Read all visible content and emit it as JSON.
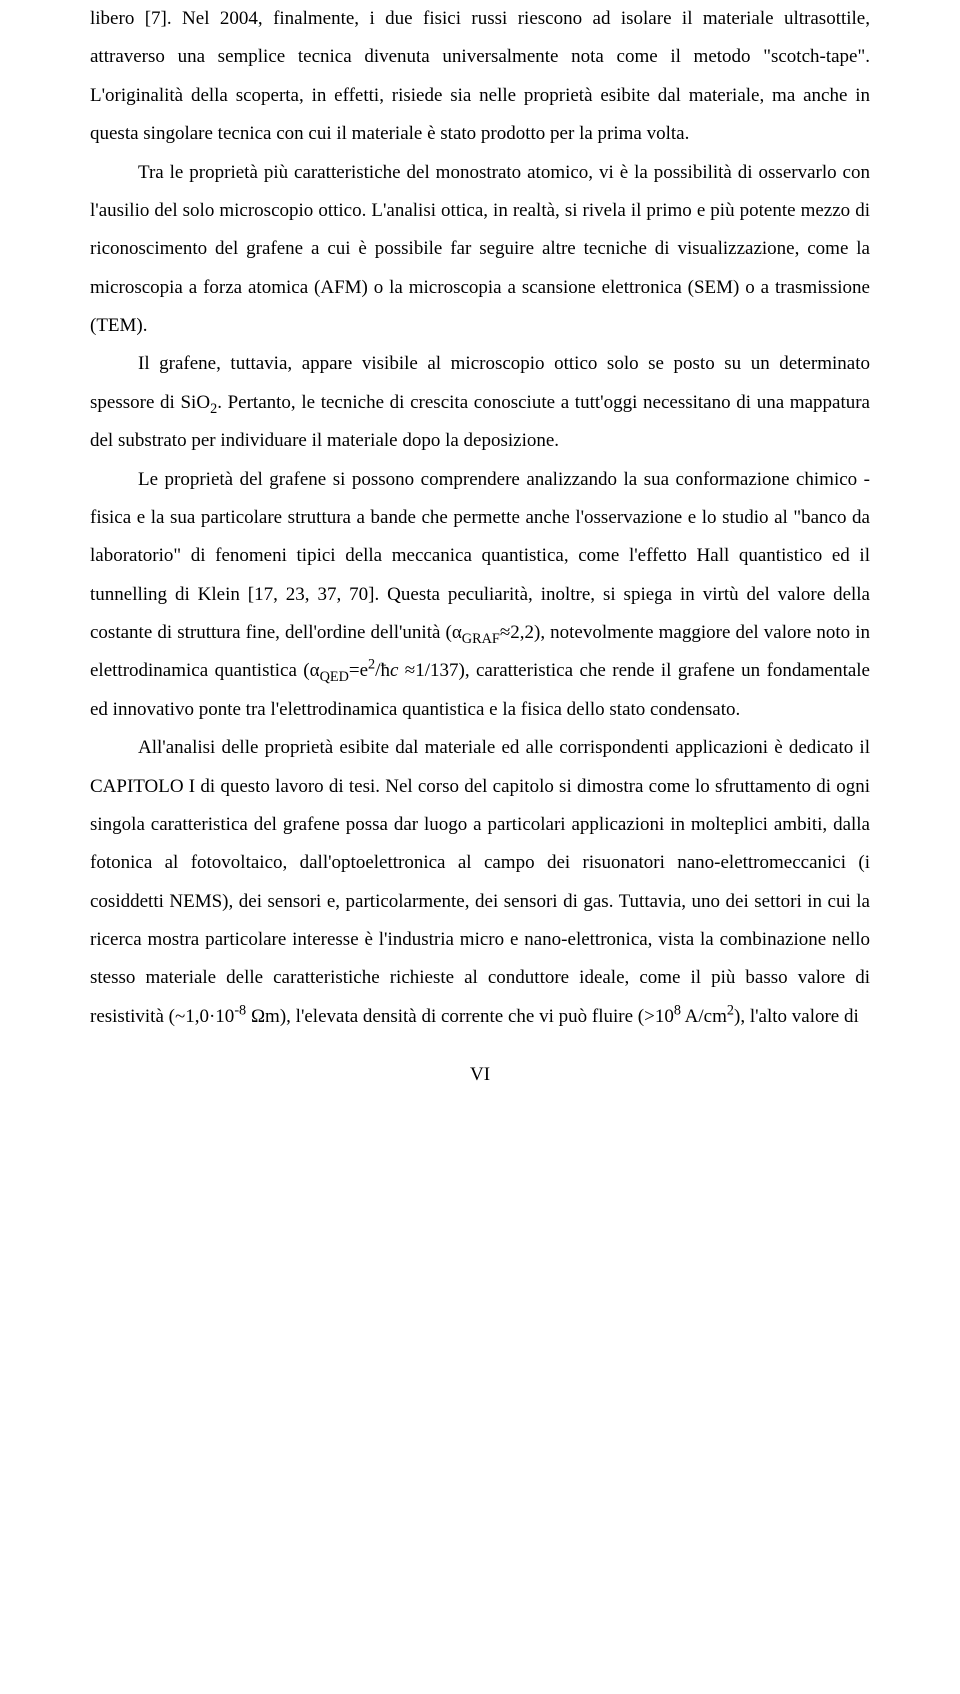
{
  "document": {
    "p1": "libero [7]. Nel 2004, finalmente, i due fisici russi riescono ad isolare il materiale ultrasottile, attraverso una semplice tecnica divenuta universalmente nota come il metodo \"scotch-tape\". L'originalità della scoperta, in effetti, risiede sia nelle proprietà esibite dal materiale, ma anche in questa singolare tecnica con cui il materiale è stato prodotto per la prima volta.",
    "p2": "Tra le proprietà più caratteristiche del monostrato atomico, vi è la possibilità di osservarlo con l'ausilio del solo microscopio ottico. L'analisi ottica, in realtà, si rivela il primo e più potente mezzo di riconoscimento del grafene a cui è possibile far seguire altre tecniche di visualizzazione, come la microscopia a forza atomica (AFM) o la microscopia a scansione elettronica (SEM) o a trasmissione (TEM).",
    "p3_part1": "Il grafene, tuttavia, appare visibile al microscopio ottico solo se posto su un determinato spessore di SiO",
    "p3_sub": "2",
    "p3_part2": ". Pertanto, le tecniche di crescita conosciute a tutt'oggi necessitano di una mappatura del substrato per individuare il materiale dopo la deposizione.",
    "p4_part1": "Le proprietà del grafene si possono comprendere analizzando la sua conformazione chimico - fisica e la sua particolare struttura a bande che permette anche l'osservazione e lo studio al \"banco da laboratorio\" di fenomeni tipici della meccanica quantistica, come l'effetto Hall quantistico ed il tunnelling di Klein [17, 23, 37, 70]. Questa peculiarità, inoltre, si spiega in virtù del valore della costante di struttura fine, dell'ordine dell'unità (α",
    "p4_sub1": "GRAF",
    "p4_part2": "≈2,2), notevolmente maggiore del valore noto in elettrodinamica quantistica (α",
    "p4_sub2": "QED",
    "p4_part3": "=e",
    "p4_sup1": "2",
    "p4_part4": "/ħ",
    "p4_italic": "c",
    "p4_part5": " ≈1/137), caratteristica che rende il grafene un fondamentale ed innovativo ponte tra l'elettrodinamica quantistica e la fisica dello stato condensato.",
    "p5_part1": "All'analisi delle proprietà esibite dal materiale ed alle corrispondenti applicazioni è dedicato il CAPITOLO I di questo lavoro di tesi. Nel corso del capitolo si dimostra come lo sfruttamento di ogni singola caratteristica del grafene possa dar luogo a particolari applicazioni in molteplici ambiti, dalla fotonica al fotovoltaico, dall'optoelettronica al campo dei risuonatori nano-elettromeccanici (i cosiddetti NEMS), dei sensori e, particolarmente, dei sensori di gas. Tuttavia, uno dei settori in cui la ricerca mostra particolare interesse è l'industria micro e nano-elettronica, vista la combinazione nello stesso materiale delle caratteristiche richieste al conduttore ideale, come il più basso valore di resistività (~1,0·10",
    "p5_sup1": "-8",
    "p5_part2": " Ωm), l'elevata densità di corrente che vi può fluire (>10",
    "p5_sup2": "8",
    "p5_part3": " A/cm",
    "p5_sup3": "2",
    "p5_part4": "), l'alto valore di",
    "page_number": "VI"
  }
}
